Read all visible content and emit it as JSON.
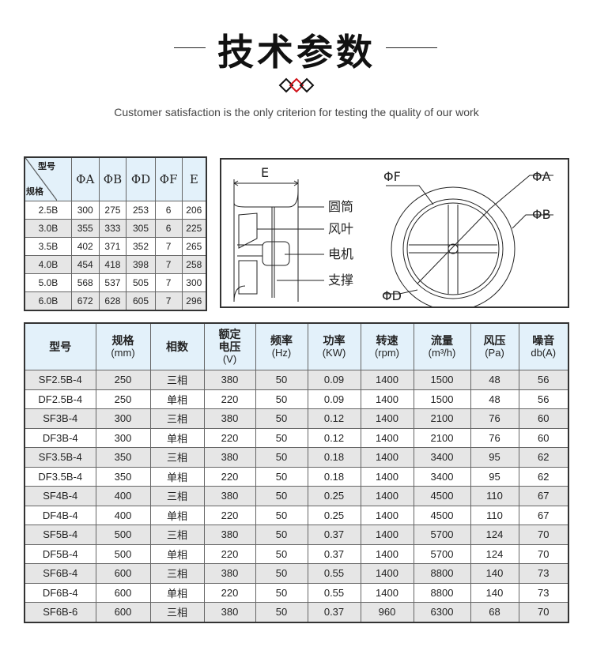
{
  "header": {
    "title": "技术参数",
    "subtitle": "Customer satisfaction is the only criterion for testing the quality of our work",
    "accent_color": "#d0141b"
  },
  "dimension_table": {
    "corner_top": "型号",
    "corner_bottom": "规格",
    "columns": [
      "ΦA",
      "ΦB",
      "ΦD",
      "ΦF",
      "E"
    ],
    "rows": [
      [
        "2.5B",
        "300",
        "275",
        "253",
        "6",
        "206"
      ],
      [
        "3.0B",
        "355",
        "333",
        "305",
        "6",
        "225"
      ],
      [
        "3.5B",
        "402",
        "371",
        "352",
        "7",
        "265"
      ],
      [
        "4.0B",
        "454",
        "418",
        "398",
        "7",
        "258"
      ],
      [
        "5.0B",
        "568",
        "537",
        "505",
        "7",
        "300"
      ],
      [
        "6.0B",
        "672",
        "628",
        "605",
        "7",
        "296"
      ]
    ]
  },
  "diagram": {
    "dim_e": "E",
    "parts": [
      "圆筒",
      "风叶",
      "电机",
      "支撑"
    ],
    "dim_f": "ΦF",
    "dim_a": "ΦA",
    "dim_b": "ΦB",
    "dim_d": "ΦD"
  },
  "spec_table": {
    "columns": [
      {
        "label": "型号",
        "unit": ""
      },
      {
        "label": "规格",
        "unit": "(mm)"
      },
      {
        "label": "相数",
        "unit": ""
      },
      {
        "label": "额定电压",
        "unit": "(V)"
      },
      {
        "label": "频率",
        "unit": "(Hz)"
      },
      {
        "label": "功率",
        "unit": "(KW)"
      },
      {
        "label": "转速",
        "unit": "(rpm)"
      },
      {
        "label": "流量",
        "unit": "(m³/h)"
      },
      {
        "label": "风压",
        "unit": "(Pa)"
      },
      {
        "label": "噪音",
        "unit": "db(A)"
      }
    ],
    "rows": [
      [
        "SF2.5B-4",
        "250",
        "三相",
        "380",
        "50",
        "0.09",
        "1400",
        "1500",
        "48",
        "56"
      ],
      [
        "DF2.5B-4",
        "250",
        "单相",
        "220",
        "50",
        "0.09",
        "1400",
        "1500",
        "48",
        "56"
      ],
      [
        "SF3B-4",
        "300",
        "三相",
        "380",
        "50",
        "0.12",
        "1400",
        "2100",
        "76",
        "60"
      ],
      [
        "DF3B-4",
        "300",
        "单相",
        "220",
        "50",
        "0.12",
        "1400",
        "2100",
        "76",
        "60"
      ],
      [
        "SF3.5B-4",
        "350",
        "三相",
        "380",
        "50",
        "0.18",
        "1400",
        "3400",
        "95",
        "62"
      ],
      [
        "DF3.5B-4",
        "350",
        "单相",
        "220",
        "50",
        "0.18",
        "1400",
        "3400",
        "95",
        "62"
      ],
      [
        "SF4B-4",
        "400",
        "三相",
        "380",
        "50",
        "0.25",
        "1400",
        "4500",
        "110",
        "67"
      ],
      [
        "DF4B-4",
        "400",
        "单相",
        "220",
        "50",
        "0.25",
        "1400",
        "4500",
        "110",
        "67"
      ],
      [
        "SF5B-4",
        "500",
        "三相",
        "380",
        "50",
        "0.37",
        "1400",
        "5700",
        "124",
        "70"
      ],
      [
        "DF5B-4",
        "500",
        "单相",
        "220",
        "50",
        "0.37",
        "1400",
        "5700",
        "124",
        "70"
      ],
      [
        "SF6B-4",
        "600",
        "三相",
        "380",
        "50",
        "0.55",
        "1400",
        "8800",
        "140",
        "73"
      ],
      [
        "DF6B-4",
        "600",
        "单相",
        "220",
        "50",
        "0.55",
        "1400",
        "8800",
        "140",
        "73"
      ],
      [
        "SF6B-6",
        "600",
        "三相",
        "380",
        "50",
        "0.37",
        "960",
        "6300",
        "68",
        "70"
      ]
    ]
  }
}
